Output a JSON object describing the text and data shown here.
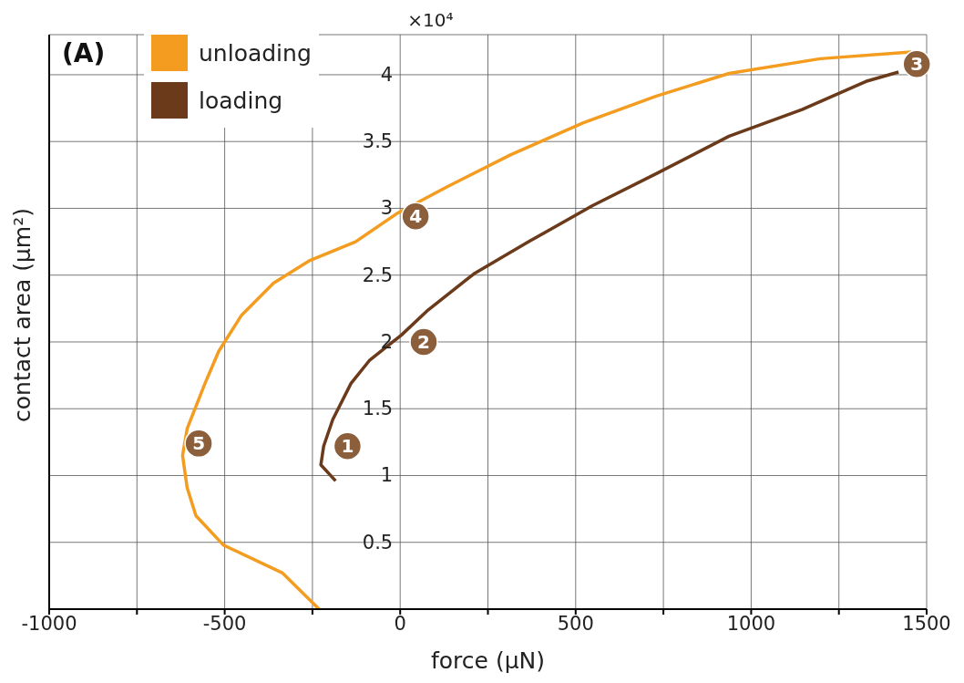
{
  "chart_data": {
    "type": "line",
    "title": "(A)",
    "xlabel": "force (μN)",
    "ylabel": "contact area (μm²)",
    "annotations": [
      "×10⁴",
      {
        "text": "1",
        "x": -150,
        "y": 1.22
      },
      {
        "text": "2",
        "x": 67,
        "y": 2.0
      },
      {
        "text": "3",
        "x": 1472,
        "y": 4.08
      },
      {
        "text": "4",
        "x": 44,
        "y": 2.94
      },
      {
        "text": "5",
        "x": -574,
        "y": 1.24
      }
    ],
    "series": [
      {
        "name": "unloading",
        "color": "#f39c1f",
        "x": [
          -231,
          -335,
          -504,
          -582,
          -607,
          -620,
          -607,
          -556,
          -517,
          -452,
          -361,
          -257,
          -127,
          -10,
          133,
          314,
          522,
          730,
          937,
          1197,
          1456
        ],
        "values": [
          0,
          0.27,
          0.48,
          0.7,
          0.91,
          1.15,
          1.35,
          1.69,
          1.93,
          2.2,
          2.44,
          2.61,
          2.75,
          2.96,
          3.16,
          3.4,
          3.64,
          3.84,
          4.01,
          4.12,
          4.17
        ]
      },
      {
        "name": "loading",
        "color": "#6b3a1a",
        "x": [
          -184,
          -226,
          -218,
          -192,
          -140,
          -88,
          -36,
          3,
          80,
          210,
          366,
          548,
          730,
          937,
          1145,
          1327,
          1420
        ],
        "values": [
          0.96,
          1.08,
          1.22,
          1.42,
          1.69,
          1.86,
          1.97,
          2.05,
          2.24,
          2.51,
          2.75,
          3.02,
          3.26,
          3.54,
          3.74,
          3.95,
          4.02
        ]
      }
    ],
    "xlim": [
      -1000,
      1500
    ],
    "xticks": [
      -1000,
      {
        "value": -750,
        "label": null
      },
      -500,
      {
        "value": -250,
        "label": null
      },
      0,
      {
        "value": 250,
        "label": null
      },
      500,
      {
        "value": 750,
        "label": null
      },
      1000,
      {
        "value": 1250,
        "label": null
      },
      1500
    ],
    "ylim": [
      0,
      4.3
    ],
    "yticks": [
      0.5,
      1,
      1.5,
      2,
      2.5,
      3,
      3.5,
      4
    ],
    "grid": true,
    "legend": "top left",
    "marker": "none",
    "line_style": "solid"
  }
}
